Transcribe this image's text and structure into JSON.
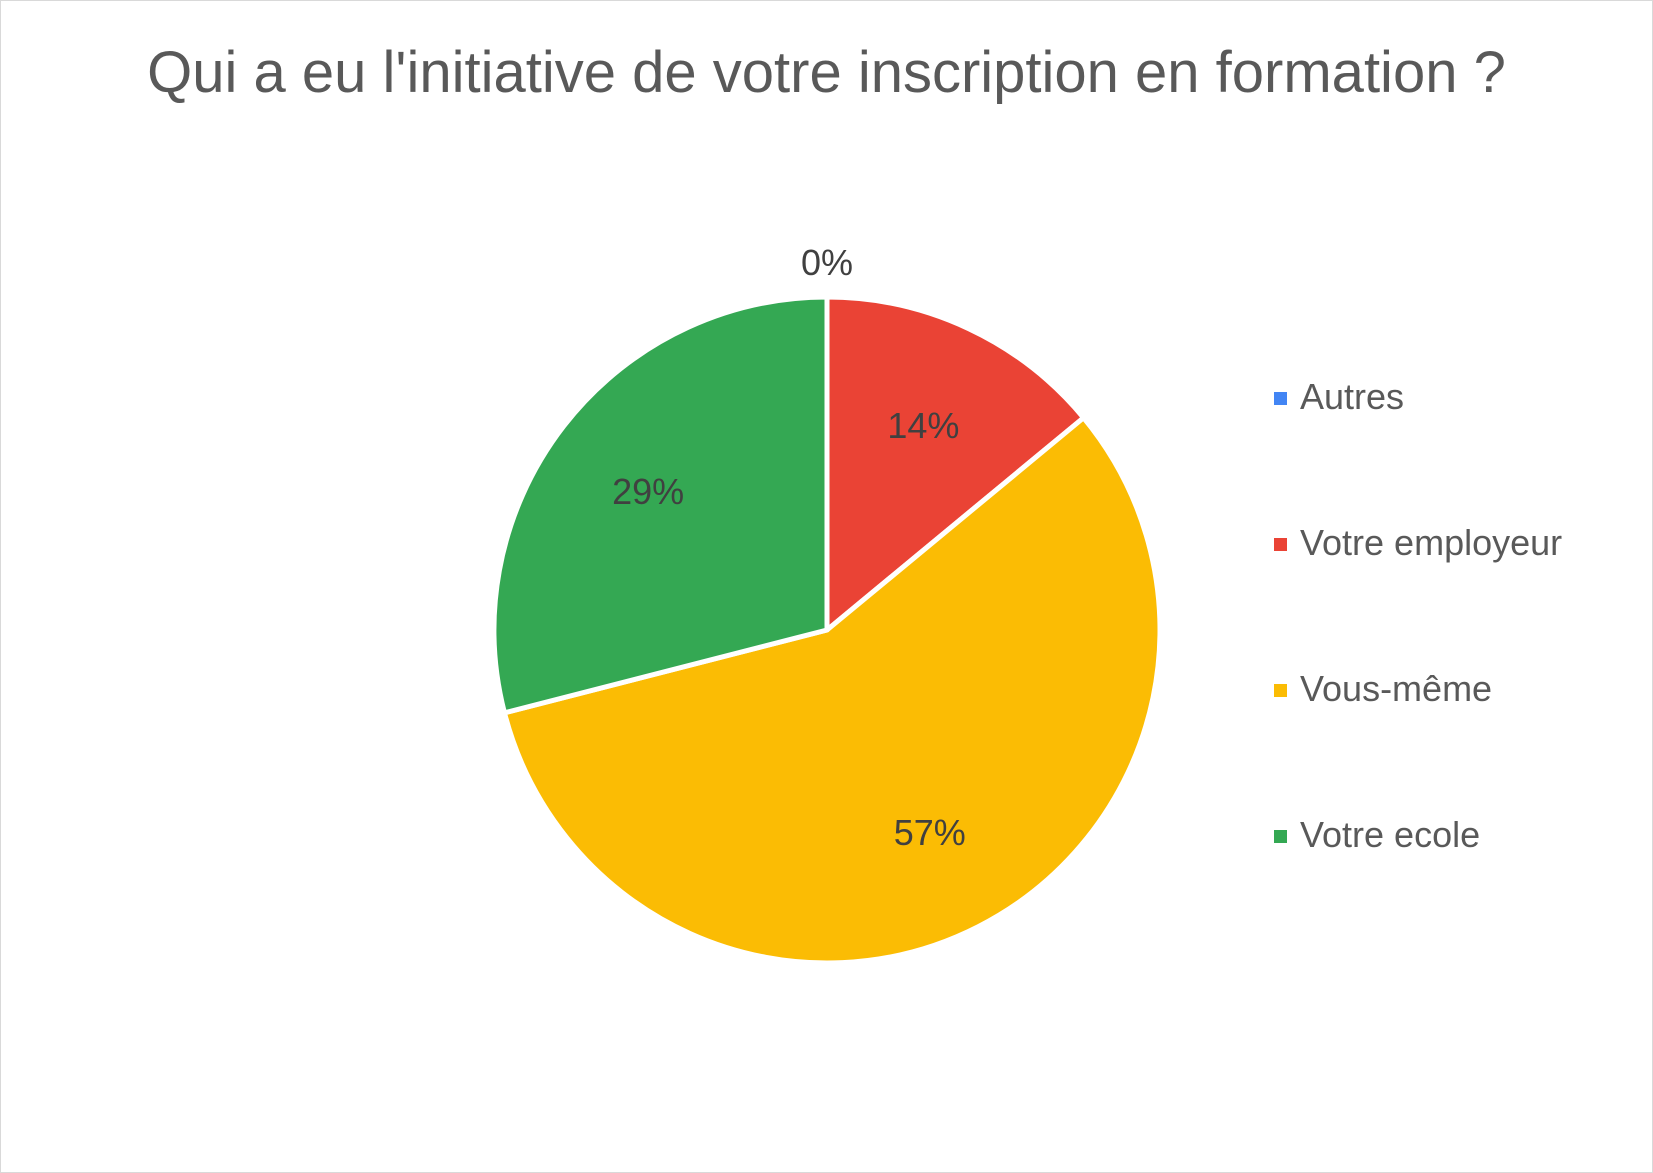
{
  "chart_data": {
    "type": "pie",
    "title": "Qui a eu l'initiative de votre inscription en formation ?",
    "categories": [
      "Autres",
      "Votre employeur",
      "Vous-même",
      "Votre ecole"
    ],
    "values": [
      0,
      14,
      57,
      29
    ],
    "labels": [
      "0%",
      "14%",
      "57%",
      "29%"
    ],
    "colors": [
      "#4285F4",
      "#EA4335",
      "#FBBC04",
      "#34A853"
    ],
    "legend_position": "right"
  }
}
